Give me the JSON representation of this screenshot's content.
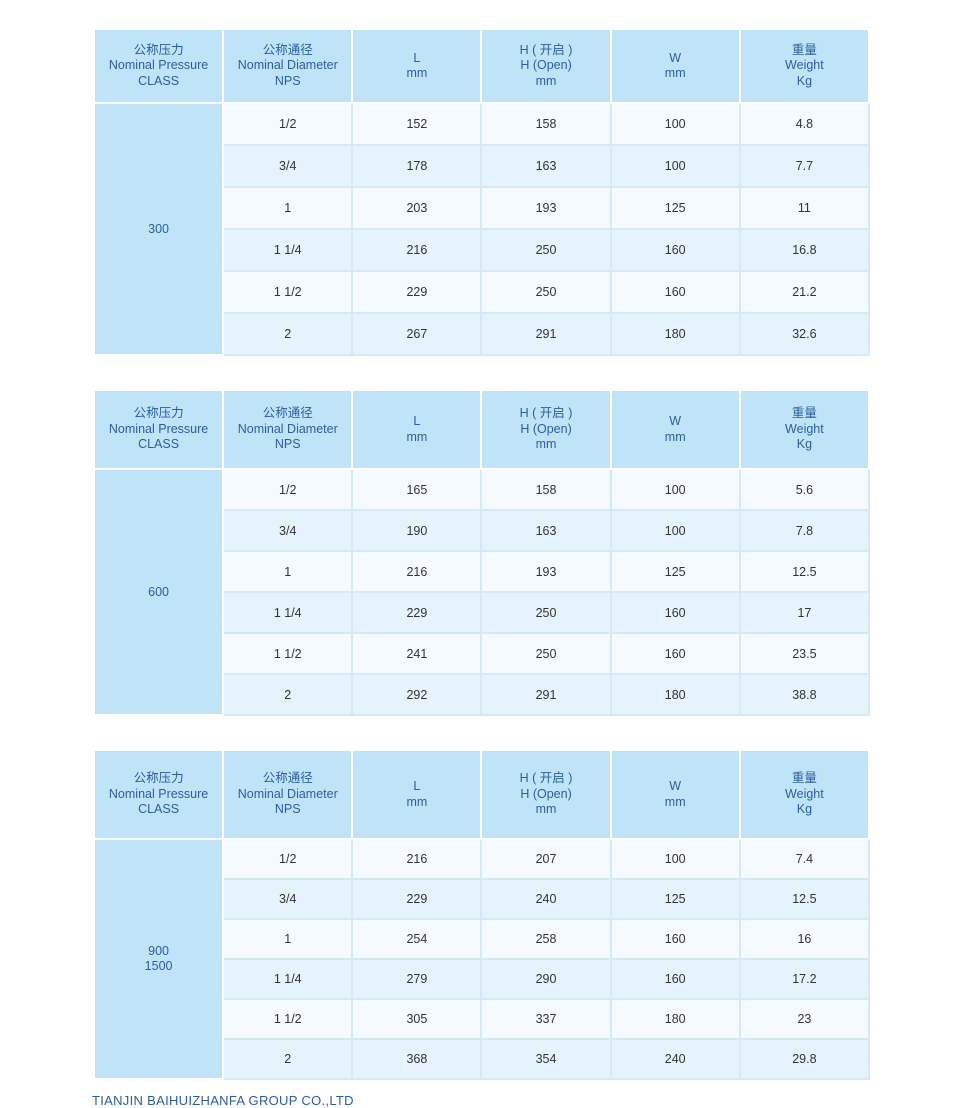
{
  "headers": [
    [
      "公称压力",
      "Nominal Pressure",
      "CLASS"
    ],
    [
      "公称通径",
      "Nominal Diameter",
      "NPS"
    ],
    [
      "L",
      "mm"
    ],
    [
      "H ( 开启 )",
      "H (Open)",
      "mm"
    ],
    [
      "W",
      "mm"
    ],
    [
      "重量",
      "Weight",
      "Kg"
    ]
  ],
  "tables": [
    {
      "class": [
        "300"
      ],
      "rows": [
        [
          "1/2",
          "152",
          "158",
          "100",
          "4.8"
        ],
        [
          "3/4",
          "178",
          "163",
          "100",
          "7.7"
        ],
        [
          "1",
          "203",
          "193",
          "125",
          "11"
        ],
        [
          "1 1/4",
          "216",
          "250",
          "160",
          "16.8"
        ],
        [
          "1 1/2",
          "229",
          "250",
          "160",
          "21.2"
        ],
        [
          "2",
          "267",
          "291",
          "180",
          "32.6"
        ]
      ]
    },
    {
      "class": [
        "600"
      ],
      "rows": [
        [
          "1/2",
          "165",
          "158",
          "100",
          "5.6"
        ],
        [
          "3/4",
          "190",
          "163",
          "100",
          "7.8"
        ],
        [
          "1",
          "216",
          "193",
          "125",
          "12.5"
        ],
        [
          "1 1/4",
          "229",
          "250",
          "160",
          "17"
        ],
        [
          "1 1/2",
          "241",
          "250",
          "160",
          "23.5"
        ],
        [
          "2",
          "292",
          "291",
          "180",
          "38.8"
        ]
      ]
    },
    {
      "class": [
        "900",
        "1500"
      ],
      "rows": [
        [
          "1/2",
          "216",
          "207",
          "100",
          "7.4"
        ],
        [
          "3/4",
          "229",
          "240",
          "125",
          "12.5"
        ],
        [
          "1",
          "254",
          "258",
          "160",
          "16"
        ],
        [
          "1 1/4",
          "279",
          "290",
          "160",
          "17.2"
        ],
        [
          "1 1/2",
          "305",
          "337",
          "180",
          "23"
        ],
        [
          "2",
          "368",
          "354",
          "240",
          "29.8"
        ]
      ]
    }
  ],
  "footer": "TIANJIN BAIHUIZHANFA GROUP CO.,LTD",
  "colors": {
    "header_bg": "#bfe4f8",
    "header_text": "#2b5e9e",
    "row_light": "#f5fafe",
    "row_blue": "#e5f3fc"
  }
}
